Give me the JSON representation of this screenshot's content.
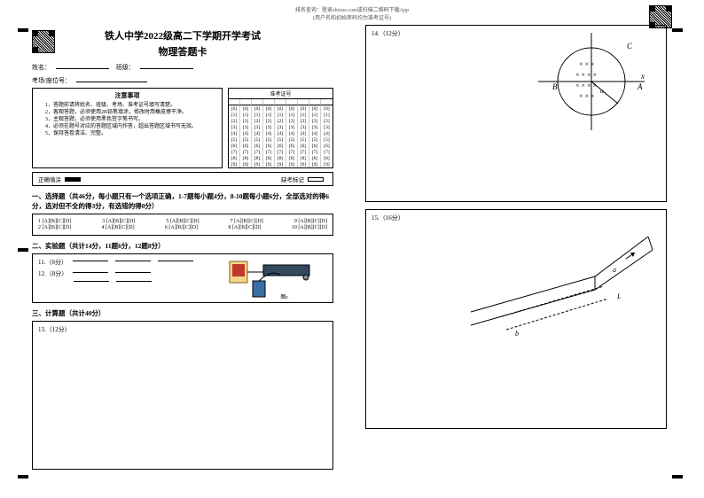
{
  "header": {
    "hint_line1": "排名查询：登录zhixue.com或扫描二维码下载App",
    "hint_line2": "(用户名和初始密码均为准考证号)"
  },
  "title_line1": "铁人中学2022级高二下学期开学考试",
  "title_line2": "物理答题卡",
  "fields": {
    "name_label": "姓名：",
    "class_label": "班级：",
    "room_label": "考场/座位号："
  },
  "notice": {
    "title": "注意事项",
    "items": [
      "1．答题前请将姓名、班级、考场、准考证号填写清楚。",
      "2．客观答题，必须使用2B铅笔填涂，修改时用橡皮擦干净。",
      "3．主观答题，必须使用黑色签字笔书写。",
      "4．必须在题号对应的答题区域内作答，超出答题区域书写无效。",
      "5．保持答卷清洁、完整。"
    ]
  },
  "bubble": {
    "title": "准考证号",
    "digits": [
      "0",
      "1",
      "2",
      "3",
      "4",
      "5",
      "6",
      "7",
      "8",
      "9"
    ],
    "cols": 9
  },
  "legend": {
    "correct": "正确填涂",
    "missing": "缺考标记"
  },
  "sec1": {
    "heading": "一、选择题（共46分，每小题只有一个选项正确，1-7题每小题4分，8-10题每小题6分，全部选对的得6分，选对但不全的得3分，有选错的得0分）",
    "rows": [
      [
        "1 [A][B][C][D]",
        "3 [A][B][C][D]",
        "5 [A][B][C][D]",
        "7 [A][B][C][D]",
        "9 [A][B][C][D]"
      ],
      [
        "2 [A][B][C][D]",
        "4 [A][B][C][D]",
        "6 [A][B][C][D]",
        "8 [A][B][C][D]",
        "10 [A][B][C][D]"
      ]
    ]
  },
  "sec2": {
    "heading": "二、实验题（共计14分，11题6分，12题8分）",
    "q11": "11.（6分）",
    "q12": "12.（8分）",
    "img_label": "图c"
  },
  "sec3": {
    "heading": "三、计算题（共计40分）",
    "q13": "13.（12分）"
  },
  "q14": {
    "label": "14.（12分）"
  },
  "q15": {
    "label": "15.（16分）"
  },
  "colors": {
    "border": "#000000",
    "text": "#000000",
    "bg": "#ffffff"
  }
}
